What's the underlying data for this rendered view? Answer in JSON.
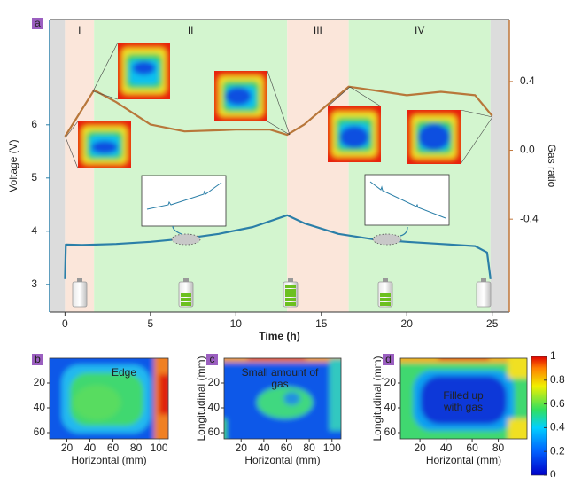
{
  "chart_data": [
    {
      "type": "line",
      "panel": "a",
      "xlabel": "Time (h)",
      "ylabel": "Voltage (V)",
      "y2label": "Gas ratio",
      "xlim": [
        -0.9,
        26
      ],
      "ylim": [
        2.48,
        7.98
      ],
      "y2lim": [
        -0.94,
        0.76
      ],
      "xticks": [
        0,
        5,
        10,
        15,
        20,
        25
      ],
      "yticks": [
        3,
        4,
        5,
        6
      ],
      "y2ticks": [
        0.4,
        {
          "value": 0,
          "label": "0.0"
        },
        -0.4
      ],
      "phases": [
        {
          "label": null,
          "start": -0.9,
          "end": 0,
          "color": "#dcdcdc"
        },
        {
          "label": "I",
          "start": 0,
          "end": 1.7,
          "color": "#fbe6da"
        },
        {
          "label": "II",
          "start": 1.7,
          "end": 13,
          "color": "#d3f5cf"
        },
        {
          "label": "III",
          "start": 13,
          "end": 16.6,
          "color": "#fbe6da"
        },
        {
          "label": "IV",
          "start": 16.6,
          "end": 24.9,
          "color": "#d3f5cf"
        },
        {
          "label": null,
          "start": 24.9,
          "end": 26,
          "color": "#dcdcdc"
        }
      ],
      "series": [
        {
          "color": "#2b7fa8",
          "axis": "y",
          "x": [
            0,
            0.05,
            1,
            3,
            5,
            7,
            9,
            11,
            13,
            14,
            16,
            18,
            20,
            22,
            24,
            24.7,
            24.9
          ],
          "values": [
            3.1,
            3.75,
            3.74,
            3.76,
            3.8,
            3.86,
            3.95,
            4.08,
            4.3,
            4.15,
            3.95,
            3.85,
            3.8,
            3.76,
            3.72,
            3.6,
            3.1
          ]
        },
        {
          "color": "#b8773a",
          "axis": "y2",
          "x": [
            0,
            1.7,
            3,
            5,
            7,
            10,
            12,
            13,
            14,
            16.6,
            18,
            20,
            22,
            24,
            25
          ],
          "values": [
            0.08,
            0.35,
            0.28,
            0.15,
            0.11,
            0.12,
            0.12,
            0.09,
            0.15,
            0.37,
            0.35,
            0.32,
            0.34,
            0.32,
            0.2
          ]
        }
      ]
    },
    {
      "type": "heatmap",
      "panel": "b",
      "xlabel": "Horizontal (mm)",
      "annotation": [
        "Edge"
      ],
      "xlim": [
        5,
        108
      ],
      "ylim": [
        65,
        0
      ],
      "xticks": [
        20,
        40,
        60,
        80,
        100
      ],
      "yticks": [
        20,
        40,
        60
      ]
    },
    {
      "type": "heatmap",
      "panel": "c",
      "xlabel": "Horizontal (mm)",
      "ylabel": "Longitudinal (mm)",
      "annotation": [
        "Small amount of",
        "gas"
      ],
      "xlim": [
        5,
        108
      ],
      "ylim": [
        65,
        0
      ],
      "xticks": [
        20,
        40,
        60,
        80,
        100
      ],
      "yticks": [
        20,
        40,
        60
      ]
    },
    {
      "type": "heatmap",
      "panel": "d",
      "xlabel": "Horizontal (mm)",
      "ylabel": "Longitudinal (mm)",
      "annotation": [
        "Filled up",
        "with gas"
      ],
      "xlim": [
        5,
        102
      ],
      "ylim": [
        65,
        0
      ],
      "xticks": [
        20,
        40,
        60,
        80
      ],
      "yticks": [
        20,
        40,
        60
      ],
      "clim": [
        0,
        1
      ],
      "cticks": [
        0,
        0.2,
        0.4,
        0.6,
        0.8,
        1
      ]
    }
  ]
}
